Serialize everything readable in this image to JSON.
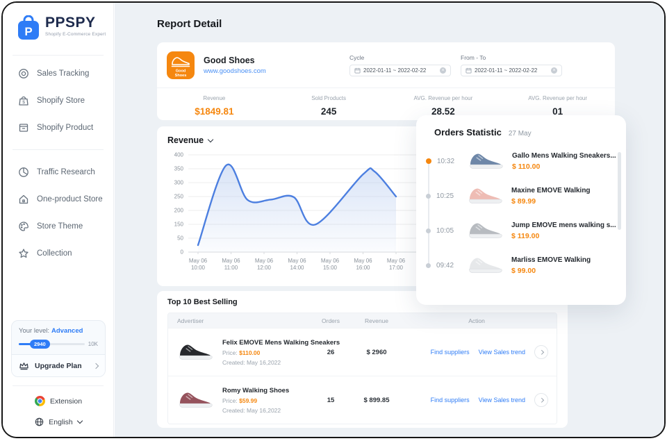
{
  "brand": {
    "name": "PPSPY",
    "tagline": "Shopify E-Commerce Expert"
  },
  "sidebar": {
    "items": [
      {
        "label": "Sales Tracking",
        "icon": "target-icon"
      },
      {
        "label": "Shopify Store",
        "icon": "store-bag-icon"
      },
      {
        "label": "Shopify Product",
        "icon": "product-box-icon"
      },
      {
        "label": "Traffic Research",
        "icon": "pie-chart-icon"
      },
      {
        "label": "One-product Store",
        "icon": "home-icon"
      },
      {
        "label": "Store Theme",
        "icon": "palette-icon"
      },
      {
        "label": "Collection",
        "icon": "star-icon"
      }
    ],
    "level_card": {
      "label": "Your level:",
      "level": "Advanced",
      "progress_value": "2940",
      "progress_max": "10K",
      "upgrade_label": "Upgrade Plan"
    },
    "footer": {
      "extension": "Extension",
      "language": "English"
    }
  },
  "page": {
    "title": "Report Detail"
  },
  "store_card": {
    "name": "Good Shoes",
    "url": "www.goodshoes.com",
    "badge_line1": "Good",
    "badge_line2": "Shoes",
    "cycle": {
      "label": "Cycle",
      "value": "2022-01-11  ~  2022-02-22"
    },
    "from_to": {
      "label": "From - To",
      "value": "2022-01-11  ~  2022-02-22"
    },
    "stats": [
      {
        "label": "Revenue",
        "value": "$1849.81"
      },
      {
        "label": "Sold Products",
        "value": "245"
      },
      {
        "label": "AVG. Revenue per hour",
        "value": "28.52"
      },
      {
        "label": "AVG. Revenue per hour",
        "value": "01"
      }
    ]
  },
  "chart_data": {
    "type": "area",
    "title": "Revenue",
    "x_labels": [
      "May 06 10:00",
      "May 06 11:00",
      "May 06 12:00",
      "May 06 14:00",
      "May 06 15:00",
      "May 06 16:00",
      "May 06 17:00"
    ],
    "y_ticks": [
      400,
      350,
      300,
      250,
      200,
      150,
      50,
      0
    ],
    "ylim": [
      0,
      400
    ],
    "grid": true,
    "legend": "none",
    "series_name": "Revenue",
    "points": [
      [
        0,
        25
      ],
      [
        0.85,
        362
      ],
      [
        1.5,
        238
      ],
      [
        2.2,
        239
      ],
      [
        2.9,
        248
      ],
      [
        3.55,
        148
      ],
      [
        5.0,
        330
      ],
      [
        5.35,
        340
      ],
      [
        6.0,
        250
      ]
    ],
    "line_color": "#4c7fe0",
    "fill_color": "#b9cdf0"
  },
  "orders_panel": {
    "title": "Orders Statistic",
    "date": "27 May",
    "items": [
      {
        "time": "10:32",
        "name": "Gallo Mens Walking Sneakers...",
        "price": "$ 110.00",
        "active": true,
        "shoe_color": "#6e87a8"
      },
      {
        "time": "10:25",
        "name": "Maxine EMOVE Walking",
        "price": "$ 89.99",
        "active": false,
        "shoe_color": "#eebcb4"
      },
      {
        "time": "10:05",
        "name": "Jump EMOVE mens walking s...",
        "price": "$ 119.00",
        "active": false,
        "shoe_color": "#b7bbc0"
      },
      {
        "time": "09:42",
        "name": "Marliss EMOVE Walking",
        "price": "$ 99.00",
        "active": false,
        "shoe_color": "#e6e8ea"
      }
    ]
  },
  "best_selling": {
    "title": "Top 10 Best Selling",
    "columns": {
      "advertiser": "Advertiser",
      "orders": "Orders",
      "revenue": "Revenue",
      "action": "Action"
    },
    "rows": [
      {
        "name": "Felix EMOVE Mens Walking Sneakers",
        "price_label": "Price:",
        "price": "$110.00",
        "created_label": "Created:",
        "created": "May 16,2022",
        "orders": "26",
        "revenue": "$ 2960",
        "find_link": "Find suppliers",
        "view_link": "View Sales trend",
        "shoe_color": "#26282c"
      },
      {
        "name": "Romy Walking Shoes",
        "price_label": "Price:",
        "price": "$59.99",
        "created_label": "Created:",
        "created": "May 16,2022",
        "orders": "15",
        "revenue": "$ 899.85",
        "find_link": "Find suppliers",
        "view_link": "View Sales trend",
        "shoe_color": "#95525c"
      }
    ]
  },
  "colors": {
    "accent_blue": "#2e7cf6",
    "orange": "#f5870f",
    "background": "#edf1f5"
  }
}
